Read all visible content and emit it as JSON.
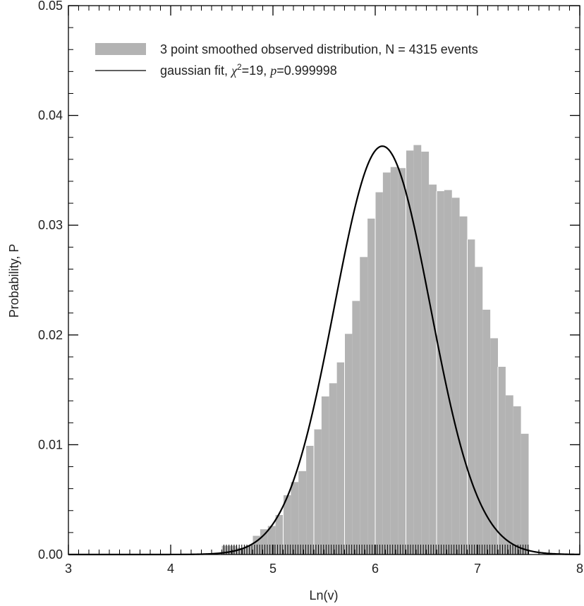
{
  "chart_data": {
    "type": "bar",
    "xlabel": "Ln(v)",
    "ylabel": "Probability, P",
    "xlim": [
      3,
      8
    ],
    "ylim": [
      0,
      0.05
    ],
    "x_ticks": [
      "3",
      "4",
      "5",
      "6",
      "7",
      "8"
    ],
    "y_ticks": [
      "0.00",
      "0.01",
      "0.02",
      "0.03",
      "0.04",
      "0.05"
    ],
    "legend": {
      "placement": "top-left",
      "entries": [
        {
          "label": "3 point smoothed observed distribution, N = 4315 events",
          "style": "bar",
          "color": "#b3b3b3"
        },
        {
          "label_prefix": "gaussian fit, ",
          "label_chi": "χ",
          "label_sup": "2",
          "label_chi_value": "=19, ",
          "label_p": "p",
          "label_p_value": "=0.999998",
          "style": "line",
          "color": "#000000"
        }
      ]
    },
    "bin_width": 0.075,
    "histogram": {
      "x": [
        4.5375,
        4.6125,
        4.6875,
        4.7625,
        4.8375,
        4.9125,
        4.9875,
        5.0625,
        5.1375,
        5.2125,
        5.2875,
        5.3625,
        5.4375,
        5.5125,
        5.5875,
        5.6625,
        5.7375,
        5.8125,
        5.8875,
        5.9625,
        6.0375,
        6.1125,
        6.1875,
        6.2625,
        6.3375,
        6.4125,
        6.4875,
        6.5625,
        6.6375,
        6.7125,
        6.7875,
        6.8625,
        6.9375,
        7.0125,
        7.0875,
        7.1625,
        7.2375,
        7.3125,
        7.3875,
        7.4625
      ],
      "values": [
        0.0008,
        0.0008,
        0.0006,
        0.0008,
        0.0017,
        0.0023,
        0.0026,
        0.0036,
        0.0054,
        0.0066,
        0.0076,
        0.0099,
        0.0114,
        0.0144,
        0.0156,
        0.0175,
        0.0201,
        0.0231,
        0.0271,
        0.0306,
        0.033,
        0.0348,
        0.0353,
        0.0352,
        0.0368,
        0.0373,
        0.0367,
        0.0337,
        0.0331,
        0.0332,
        0.0325,
        0.0308,
        0.0287,
        0.0262,
        0.0223,
        0.0197,
        0.0171,
        0.0145,
        0.0135,
        0.011
      ]
    },
    "fit": {
      "type": "gaussian",
      "amplitude": 0.0372,
      "mean": 6.07,
      "sigma": 0.47
    },
    "grid": false
  }
}
